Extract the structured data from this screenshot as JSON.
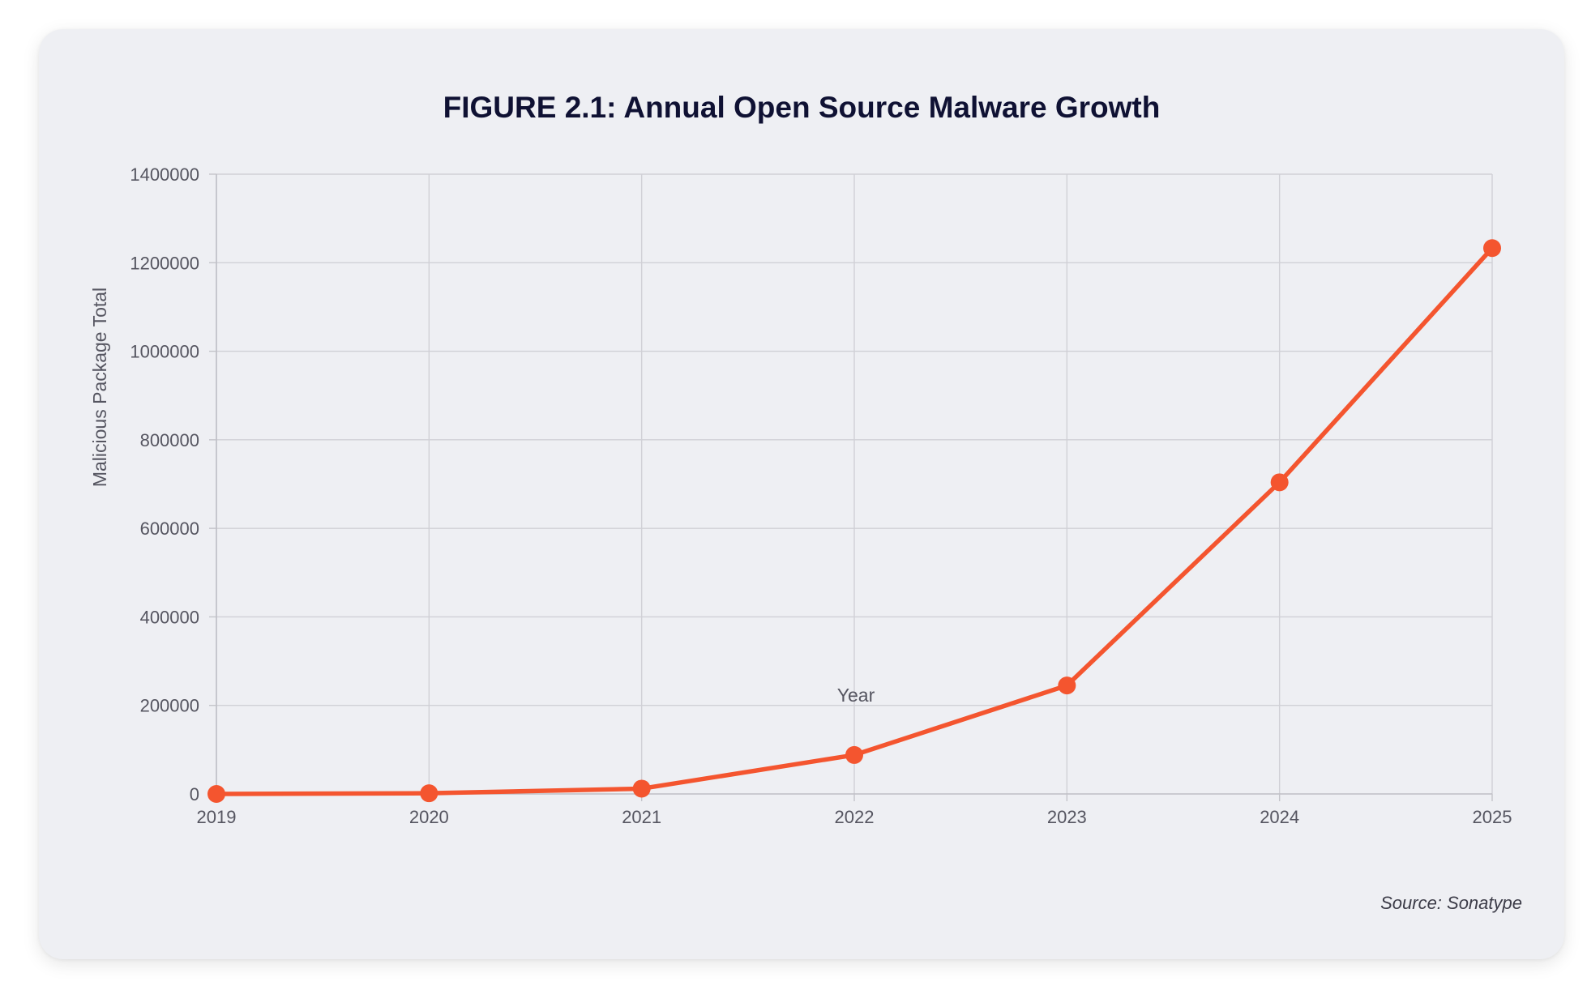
{
  "chart_data": {
    "type": "line",
    "title": "FIGURE 2.1: Annual Open Source Malware Growth",
    "xlabel": "Year",
    "ylabel": "Malicious Package Total",
    "source": "Source: Sonatype",
    "categories": [
      "2019",
      "2020",
      "2021",
      "2022",
      "2023",
      "2024",
      "2025"
    ],
    "series": [
      {
        "name": "Malicious Package Total",
        "color": "#f4552f",
        "values": [
          0,
          1500,
          12000,
          88000,
          245000,
          704000,
          1233000
        ]
      }
    ],
    "ylim": [
      0,
      1400000
    ],
    "yticks": [
      "0",
      "200000",
      "400000",
      "600000",
      "800000",
      "1000000",
      "1200000",
      "1400000"
    ],
    "grid": true,
    "legend": "none"
  }
}
